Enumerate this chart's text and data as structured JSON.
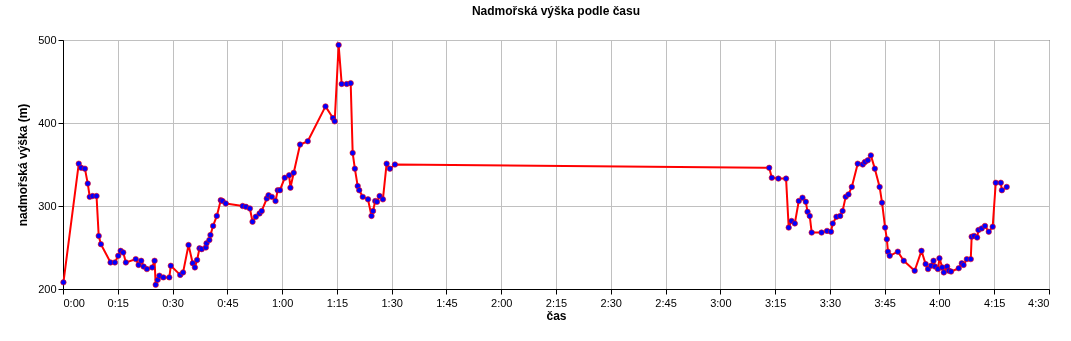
{
  "chart_data": {
    "type": "line",
    "title": "Nadmořská výška podle času",
    "xlabel": "čas",
    "ylabel": "nadmořská výška (m)",
    "x": [
      0.002,
      0.072,
      0.083,
      0.1,
      0.113,
      0.122,
      0.135,
      0.153,
      0.163,
      0.173,
      0.217,
      0.237,
      0.252,
      0.263,
      0.275,
      0.287,
      0.332,
      0.345,
      0.357,
      0.368,
      0.383,
      0.407,
      0.418,
      0.423,
      0.432,
      0.44,
      0.458,
      0.485,
      0.492,
      0.535,
      0.548,
      0.573,
      0.592,
      0.602,
      0.612,
      0.623,
      0.633,
      0.652,
      0.655,
      0.668,
      0.673,
      0.685,
      0.702,
      0.72,
      0.728,
      0.743,
      0.82,
      0.835,
      0.853,
      0.865,
      0.88,
      0.897,
      0.907,
      0.93,
      0.938,
      0.953,
      0.97,
      0.98,
      0.99,
      1.012,
      1.032,
      1.038,
      1.053,
      1.082,
      1.117,
      1.198,
      1.232,
      1.24,
      1.258,
      1.272,
      1.295,
      1.313,
      1.322,
      1.332,
      1.345,
      1.352,
      1.368,
      1.392,
      1.408,
      1.415,
      1.425,
      1.433,
      1.445,
      1.46,
      1.477,
      1.492,
      1.515,
      3.223,
      3.235,
      3.265,
      3.3,
      3.312,
      3.325,
      3.34,
      3.358,
      3.375,
      3.39,
      3.398,
      3.408,
      3.417,
      3.462,
      3.487,
      3.505,
      3.513,
      3.53,
      3.547,
      3.558,
      3.572,
      3.585,
      3.6,
      3.627,
      3.65,
      3.66,
      3.673,
      3.687,
      3.705,
      3.727,
      3.738,
      3.752,
      3.76,
      3.765,
      3.773,
      3.81,
      3.837,
      3.887,
      3.918,
      3.937,
      3.948,
      3.962,
      3.973,
      3.98,
      3.993,
      4.0,
      4.013,
      4.02,
      4.035,
      4.043,
      4.053,
      4.088,
      4.102,
      4.11,
      4.125,
      4.143,
      4.147,
      4.158,
      4.172,
      4.178,
      4.193,
      4.208,
      4.225,
      4.243,
      4.257,
      4.28,
      4.285,
      4.307
    ],
    "series": [
      {
        "color": "#ff0000",
        "values": [
          208,
          351,
          346,
          345,
          327,
          311,
          312,
          312,
          264,
          254,
          232,
          232,
          240,
          246,
          244,
          232,
          236,
          229,
          234,
          227,
          224,
          226,
          234,
          205,
          211,
          216,
          214,
          214,
          228,
          217,
          220,
          253,
          231,
          226,
          235,
          249,
          248,
          250,
          255,
          259,
          265,
          276,
          288,
          307,
          306,
          303,
          300,
          299,
          297,
          281,
          287,
          291,
          294,
          309,
          313,
          311,
          306,
          319,
          319,
          334,
          337,
          322,
          340,
          374,
          378,
          420,
          406,
          402,
          494,
          447,
          447,
          448,
          364,
          345,
          324,
          319,
          311,
          308,
          288,
          294,
          306,
          305,
          312,
          308,
          351,
          345,
          350,
          346,
          334,
          333,
          333,
          274,
          282,
          279,
          306,
          310,
          305,
          293,
          288,
          268,
          268,
          270,
          269,
          279,
          287,
          288,
          294,
          311,
          314,
          323,
          351,
          350,
          353,
          355,
          361,
          345,
          323,
          304,
          274,
          260,
          245,
          240,
          245,
          234,
          222,
          246,
          230,
          224,
          228,
          234,
          227,
          224,
          237,
          226,
          220,
          227,
          222,
          221,
          225,
          231,
          229,
          236,
          236,
          263,
          264,
          262,
          271,
          273,
          276,
          269,
          275,
          328,
          328,
          319,
          323
        ]
      }
    ],
    "xlim": [
      0,
      4.5
    ],
    "xticks": [
      {
        "value": 0,
        "label": "0:00"
      },
      {
        "value": 0.25,
        "label": "0:15"
      },
      {
        "value": 0.5,
        "label": "0:30"
      },
      {
        "value": 0.75,
        "label": "0:45"
      },
      {
        "value": 1,
        "label": "1:00"
      },
      {
        "value": 1.25,
        "label": "1:15"
      },
      {
        "value": 1.5,
        "label": "1:30"
      },
      {
        "value": 1.75,
        "label": "1:45"
      },
      {
        "value": 2,
        "label": "2:00"
      },
      {
        "value": 2.25,
        "label": "2:15"
      },
      {
        "value": 2.5,
        "label": "2:30"
      },
      {
        "value": 2.75,
        "label": "2:45"
      },
      {
        "value": 3,
        "label": "3:00"
      },
      {
        "value": 3.25,
        "label": "3:15"
      },
      {
        "value": 3.5,
        "label": "3:30"
      },
      {
        "value": 3.75,
        "label": "3:45"
      },
      {
        "value": 4,
        "label": "4:00"
      },
      {
        "value": 4.25,
        "label": "4:15"
      },
      {
        "value": 4.5,
        "label": "4:30"
      }
    ],
    "ylim": [
      200,
      500
    ],
    "yticks": [
      200,
      300,
      400,
      500
    ],
    "grid": true,
    "marker": "circle",
    "line_style": "solid"
  }
}
